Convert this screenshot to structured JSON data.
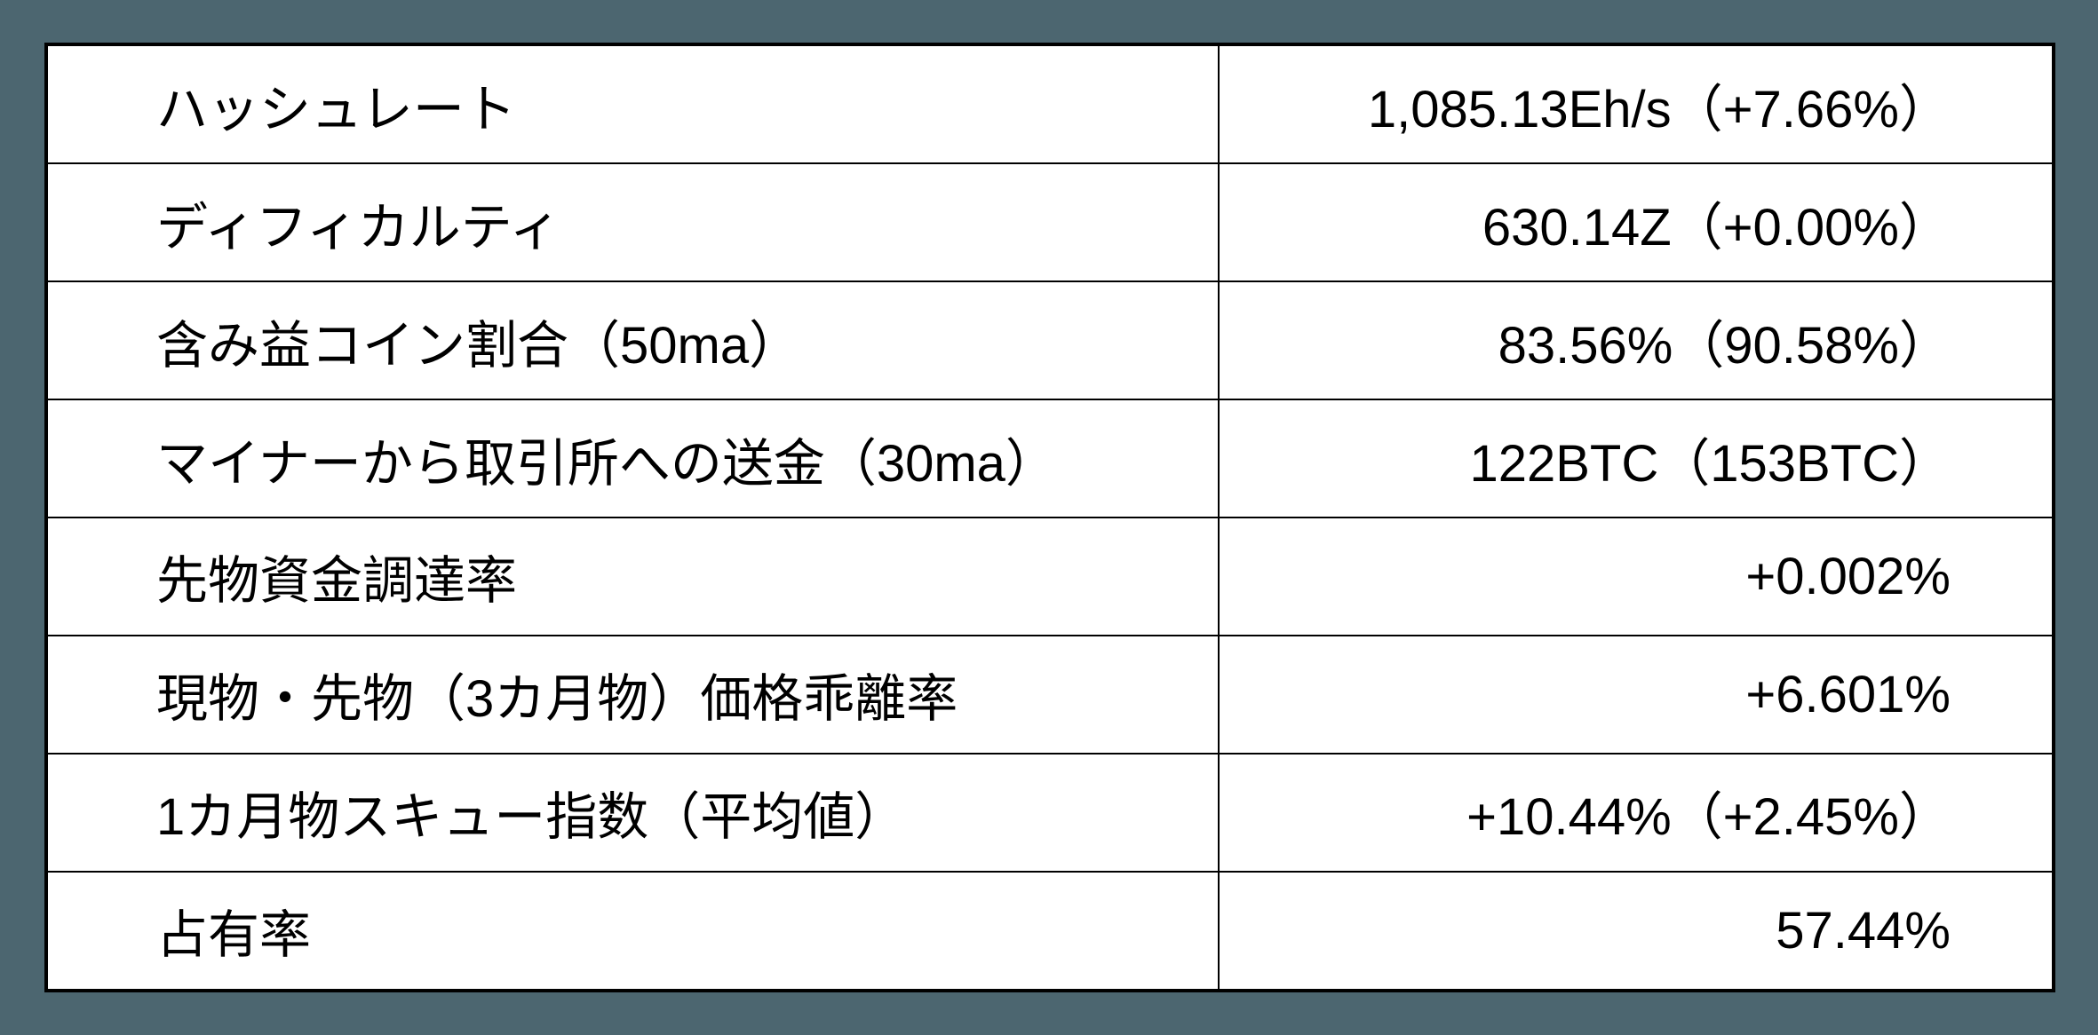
{
  "page": {
    "background_color": "#4c6670",
    "table_background_color": "#ffffff",
    "border_color": "#000000",
    "text_color": "#000000"
  },
  "chart_data": {
    "type": "table",
    "grid": "on",
    "rows": [
      {
        "label": "ハッシュレート",
        "value": "1,085.13Eh/s（+7.66%）"
      },
      {
        "label": "ディフィカルティ",
        "value": "630.14Z（+0.00%）"
      },
      {
        "label": "含み益コイン割合（50ma）",
        "value": "83.56%（90.58%）"
      },
      {
        "label": "マイナーから取引所への送金（30ma）",
        "value": "122BTC（153BTC）"
      },
      {
        "label": "先物資金調達率",
        "value": "+0.002%"
      },
      {
        "label": "現物・先物（3カ月物）価格乖離率",
        "value": "+6.601%"
      },
      {
        "label": "1カ月物スキュー指数（平均値）",
        "value": "+10.44%（+2.45%）"
      },
      {
        "label": "占有率",
        "value": "57.44%"
      }
    ]
  }
}
